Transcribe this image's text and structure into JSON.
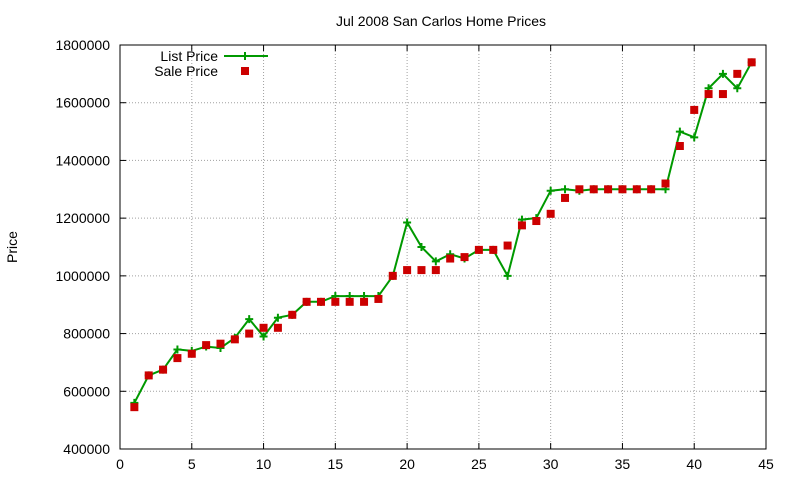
{
  "chart_data": {
    "type": "line",
    "title": "Jul 2008 San Carlos Home Prices",
    "xlabel": "",
    "ylabel": "Price",
    "xlim": [
      0,
      45
    ],
    "ylim": [
      400000,
      1800000
    ],
    "xticks": [
      0,
      5,
      10,
      15,
      20,
      25,
      30,
      35,
      40,
      45
    ],
    "yticks": [
      400000,
      600000,
      800000,
      1000000,
      1200000,
      1400000,
      1600000,
      1800000
    ],
    "grid": true,
    "legend_position": "top-left",
    "series": [
      {
        "name": "List Price",
        "style": "line-with-plus-markers",
        "color": "#009900",
        "x": [
          1,
          2,
          3,
          4,
          5,
          6,
          7,
          8,
          9,
          10,
          11,
          12,
          13,
          14,
          15,
          16,
          17,
          18,
          19,
          20,
          21,
          22,
          23,
          24,
          25,
          26,
          27,
          28,
          29,
          30,
          31,
          32,
          33,
          34,
          35,
          36,
          37,
          38,
          39,
          40,
          41,
          42,
          43,
          44
        ],
        "values": [
          560000,
          655000,
          675000,
          745000,
          740000,
          755000,
          750000,
          785000,
          850000,
          790000,
          855000,
          865000,
          910000,
          910000,
          930000,
          930000,
          930000,
          930000,
          1000000,
          1185000,
          1100000,
          1050000,
          1075000,
          1060000,
          1090000,
          1090000,
          1000000,
          1195000,
          1200000,
          1295000,
          1300000,
          1295000,
          1300000,
          1300000,
          1300000,
          1300000,
          1300000,
          1300000,
          1500000,
          1480000,
          1650000,
          1700000,
          1650000,
          1740000
        ]
      },
      {
        "name": "Sale Price",
        "style": "square-markers",
        "color": "#cc0000",
        "x": [
          1,
          2,
          3,
          4,
          5,
          6,
          7,
          8,
          9,
          10,
          11,
          12,
          13,
          14,
          15,
          16,
          17,
          18,
          19,
          20,
          21,
          22,
          23,
          24,
          25,
          26,
          27,
          28,
          29,
          30,
          31,
          32,
          33,
          34,
          35,
          36,
          37,
          38,
          39,
          40,
          41,
          42,
          43,
          44
        ],
        "values": [
          545000,
          655000,
          675000,
          715000,
          730000,
          760000,
          765000,
          780000,
          800000,
          820000,
          820000,
          865000,
          910000,
          910000,
          910000,
          910000,
          910000,
          920000,
          1000000,
          1020000,
          1020000,
          1020000,
          1060000,
          1065000,
          1090000,
          1090000,
          1105000,
          1175000,
          1190000,
          1215000,
          1270000,
          1300000,
          1300000,
          1300000,
          1300000,
          1300000,
          1300000,
          1320000,
          1450000,
          1575000,
          1630000,
          1630000,
          1700000,
          1740000
        ]
      }
    ]
  }
}
